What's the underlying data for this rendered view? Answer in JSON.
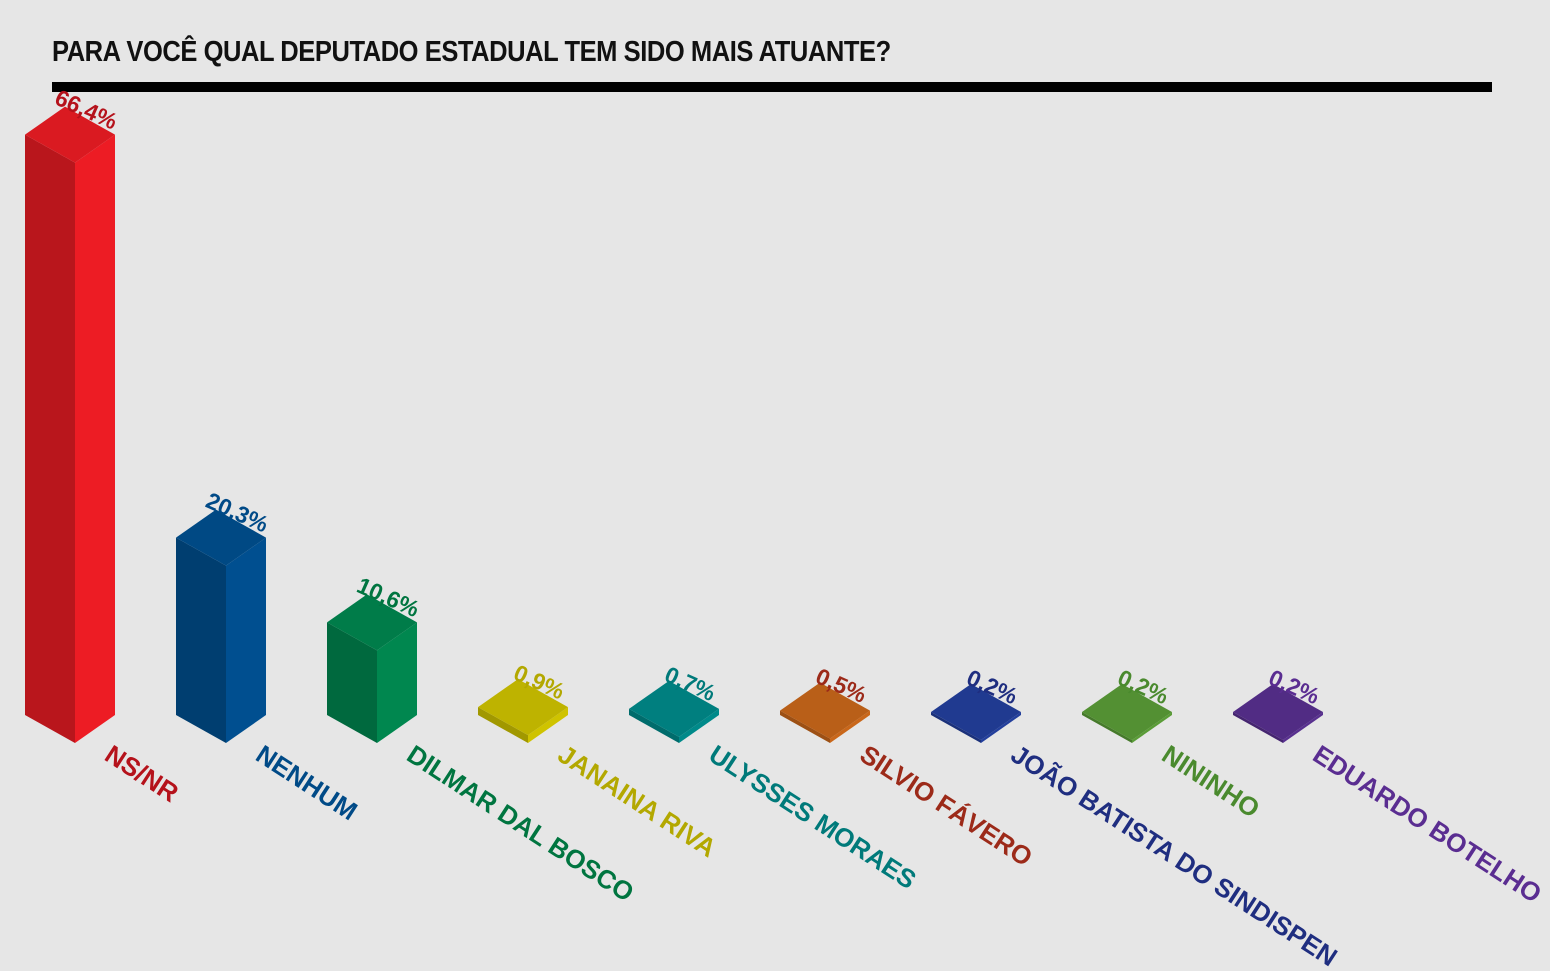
{
  "chart_data": {
    "type": "bar",
    "title": "PARA VOCÊ QUAL DEPUTADO ESTADUAL TEM SIDO MAIS ATUANTE?",
    "categories": [
      "NS/NR",
      "NENHUM",
      "DILMAR DAL BOSCO",
      "JANAINA RIVA",
      "ULYSSES MORAES",
      "SILVIO FÁVERO",
      "JOÃO BATISTA DO SINDISPEN",
      "NININHO",
      "EDUARDO BOTELHO"
    ],
    "values": [
      66.4,
      20.3,
      10.6,
      0.9,
      0.7,
      0.5,
      0.2,
      0.2,
      0.2
    ],
    "value_labels": [
      "66,4%",
      "20,3%",
      "10,6%",
      "0,9%",
      "0,7%",
      "0,5%",
      "0,2%",
      "0,2%",
      "0,2%"
    ],
    "colors": [
      "#ed1c24",
      "#004f90",
      "#00874f",
      "#cfc300",
      "#008a8a",
      "#c9671a",
      "#233f9c",
      "#5a9c37",
      "#58308f"
    ],
    "label_colors": [
      "#b5121b",
      "#004a87",
      "#007540",
      "#b3a800",
      "#007a7a",
      "#9c2a19",
      "#1f2e80",
      "#4a8a2e",
      "#5a2d91"
    ],
    "style": "3d-isometric",
    "grid": false,
    "legend": "none"
  }
}
